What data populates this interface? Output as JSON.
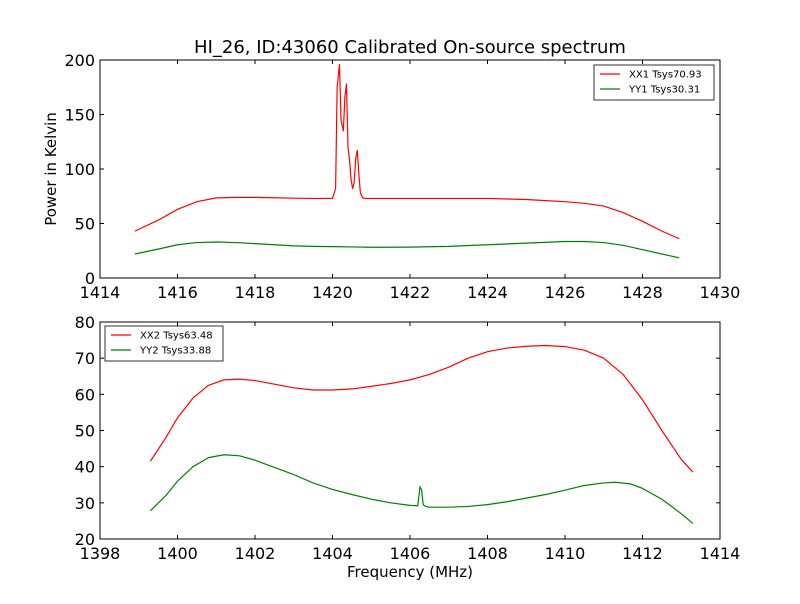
{
  "figure": {
    "title": "HI_26, ID:43060 Calibrated On-source spectrum",
    "colors": {
      "red": "#ff0000",
      "green": "#008000",
      "axes": "#000000",
      "background": "#ffffff"
    }
  },
  "chart_data": [
    {
      "type": "line",
      "title": "HI_26, ID:43060 Calibrated On-source spectrum",
      "xlabel": "",
      "ylabel": "Power in Kelvin",
      "xlim": [
        1414,
        1430
      ],
      "ylim": [
        0,
        200
      ],
      "xticks": [
        1414,
        1416,
        1418,
        1420,
        1422,
        1424,
        1426,
        1428,
        1430
      ],
      "yticks": [
        0,
        50,
        100,
        150,
        200
      ],
      "grid": false,
      "legend_position": "top-right",
      "series": [
        {
          "name": "XX1 Tsys70.93",
          "color": "#ff0000",
          "x": [
            1414.9,
            1415.5,
            1416.0,
            1416.5,
            1417.0,
            1417.5,
            1418.0,
            1418.5,
            1419.0,
            1419.5,
            1420.0,
            1420.08,
            1420.12,
            1420.18,
            1420.22,
            1420.28,
            1420.32,
            1420.36,
            1420.4,
            1420.44,
            1420.48,
            1420.52,
            1420.56,
            1420.6,
            1420.64,
            1420.68,
            1420.72,
            1420.78,
            1420.85,
            1421.0,
            1421.5,
            1422.0,
            1422.5,
            1423.0,
            1423.5,
            1424.0,
            1424.5,
            1425.0,
            1425.5,
            1426.0,
            1426.5,
            1427.0,
            1427.5,
            1428.0,
            1428.5,
            1428.95
          ],
          "y": [
            43,
            53,
            63,
            70,
            73.5,
            74,
            74,
            73.6,
            73.2,
            73,
            73,
            82,
            175,
            196,
            145,
            135,
            166,
            178,
            120,
            108,
            90,
            82,
            88,
            110,
            117,
            95,
            78,
            73.5,
            73,
            73,
            73,
            73,
            73,
            73,
            73,
            73,
            72.5,
            72,
            71,
            70,
            68.5,
            66,
            60,
            52,
            43,
            36
          ]
        },
        {
          "name": "YY1 Tsys30.31",
          "color": "#008000",
          "x": [
            1414.9,
            1415.5,
            1416.0,
            1416.5,
            1417.0,
            1417.5,
            1418.0,
            1418.5,
            1419.0,
            1419.5,
            1420.0,
            1420.5,
            1421.0,
            1422.0,
            1423.0,
            1424.0,
            1425.0,
            1426.0,
            1426.5,
            1427.0,
            1427.5,
            1428.0,
            1428.5,
            1428.95
          ],
          "y": [
            22,
            26.5,
            30.5,
            32.5,
            33,
            32.5,
            31.5,
            30.5,
            29.5,
            29,
            28.8,
            28.5,
            28.2,
            28.3,
            29,
            30.5,
            32,
            33.5,
            33.5,
            32.5,
            30,
            26,
            22,
            18.5
          ]
        }
      ]
    },
    {
      "type": "line",
      "title": "",
      "xlabel": "Frequency (MHz)",
      "ylabel": "",
      "xlim": [
        1398,
        1414
      ],
      "ylim": [
        20,
        80
      ],
      "xticks": [
        1398,
        1400,
        1402,
        1404,
        1406,
        1408,
        1410,
        1412,
        1414
      ],
      "yticks": [
        20,
        30,
        40,
        50,
        60,
        70,
        80
      ],
      "grid": false,
      "legend_position": "top-left",
      "series": [
        {
          "name": "XX2 Tsys63.48",
          "color": "#ff0000",
          "x": [
            1399.3,
            1399.7,
            1400.0,
            1400.4,
            1400.8,
            1401.2,
            1401.6,
            1402.0,
            1402.5,
            1403.0,
            1403.5,
            1404.0,
            1404.5,
            1405.0,
            1405.5,
            1406.0,
            1406.5,
            1407.0,
            1407.5,
            1408.0,
            1408.5,
            1409.0,
            1409.5,
            1410.0,
            1410.5,
            1411.0,
            1411.5,
            1412.0,
            1412.5,
            1413.0,
            1413.3
          ],
          "y": [
            41.5,
            48,
            53.5,
            59,
            62.5,
            64,
            64.2,
            63.8,
            62.8,
            61.8,
            61.2,
            61.2,
            61.5,
            62.2,
            63,
            64,
            65.5,
            67.5,
            70,
            71.8,
            72.8,
            73.3,
            73.5,
            73.2,
            72.2,
            70,
            65.5,
            58.5,
            50,
            42,
            38.5
          ]
        },
        {
          "name": "YY2 Tsys33.88",
          "color": "#008000",
          "x": [
            1399.3,
            1399.7,
            1400.0,
            1400.4,
            1400.8,
            1401.2,
            1401.6,
            1402.0,
            1402.5,
            1403.0,
            1403.5,
            1404.0,
            1404.5,
            1405.0,
            1405.5,
            1406.0,
            1406.2,
            1406.26,
            1406.3,
            1406.34,
            1406.4,
            1406.5,
            1407.0,
            1407.5,
            1408.0,
            1408.5,
            1409.0,
            1409.5,
            1410.0,
            1410.5,
            1411.0,
            1411.3,
            1411.7,
            1412.0,
            1412.5,
            1413.0,
            1413.3
          ],
          "y": [
            27.8,
            32,
            36,
            40,
            42.5,
            43.3,
            43,
            41.8,
            39.8,
            37.8,
            35.5,
            33.7,
            32.3,
            31,
            30,
            29.3,
            29.2,
            34.5,
            33.5,
            29.5,
            29,
            28.8,
            28.8,
            29,
            29.5,
            30.3,
            31.3,
            32.3,
            33.5,
            34.8,
            35.5,
            35.7,
            35.2,
            34,
            31,
            27,
            24.3
          ]
        }
      ]
    }
  ]
}
